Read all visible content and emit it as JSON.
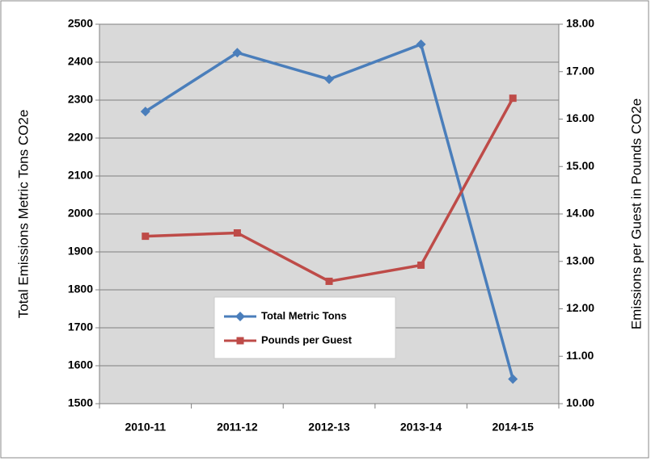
{
  "chart_data": {
    "type": "line",
    "categories": [
      "2010-11",
      "2011-12",
      "2012-13",
      "2013-14",
      "2014-15"
    ],
    "series": [
      {
        "name": "Total Metric Tons",
        "color": "#4a7ebb",
        "marker": "diamond",
        "values": [
          2270,
          2425,
          2355,
          2447,
          1565
        ]
      },
      {
        "name": "Pounds  per Guest",
        "color": "#be4b48",
        "marker": "square",
        "axis": "y2",
        "values": [
          13.53,
          13.6,
          12.58,
          12.92,
          16.44
        ]
      }
    ],
    "ylabel": "Total Emissions Metric Tons CO2e",
    "y2label": "Emissions per Guest in Pounds CO2e",
    "ylim": [
      1500,
      2500
    ],
    "yticks": [
      1500,
      1600,
      1700,
      1800,
      1900,
      2000,
      2100,
      2200,
      2300,
      2400,
      2500
    ],
    "y2lim": [
      10,
      18
    ],
    "y2ticks": [
      {
        "value": 10,
        "label": "10.00"
      },
      {
        "value": 11,
        "label": "11.00"
      },
      {
        "value": 12,
        "label": "12.00"
      },
      {
        "value": 13,
        "label": "13.00"
      },
      {
        "value": 14,
        "label": "14.00"
      },
      {
        "value": 15,
        "label": "15.00"
      },
      {
        "value": 16,
        "label": "16.00"
      },
      {
        "value": 17,
        "label": "17.00"
      },
      {
        "value": 18,
        "label": "18.00"
      }
    ],
    "grid": true,
    "legend": "bottom"
  }
}
